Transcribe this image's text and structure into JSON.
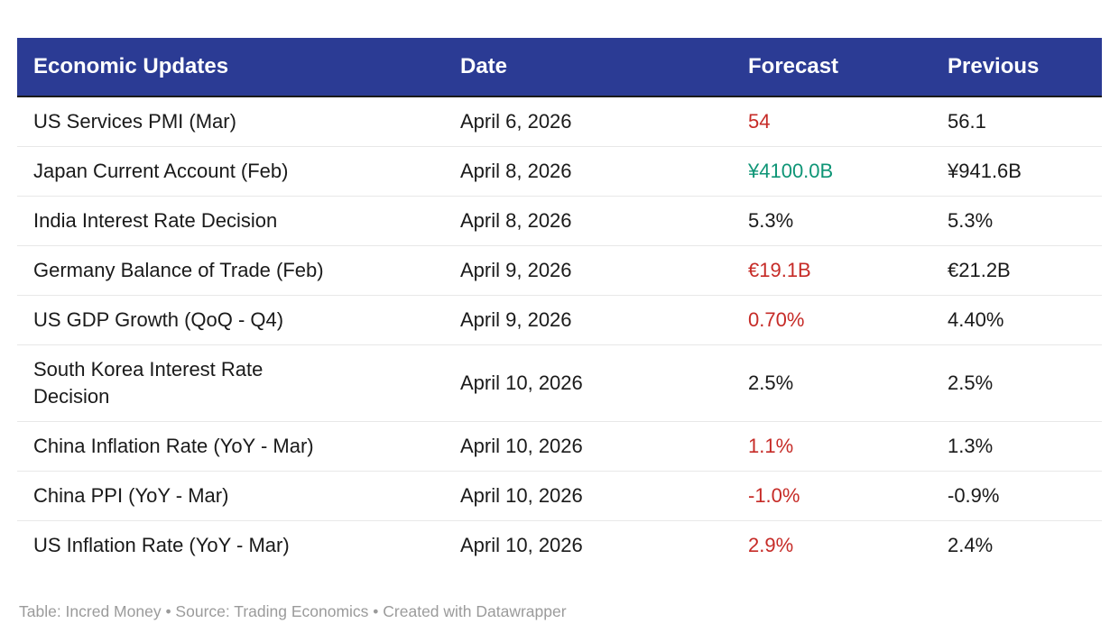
{
  "chart_data": {
    "type": "table",
    "columns": [
      "Economic Updates",
      "Date",
      "Forecast",
      "Previous"
    ],
    "rows": [
      {
        "indicator": "US Services PMI (Mar)",
        "date": "April 6, 2026",
        "forecast": "54",
        "forecast_color": "red",
        "previous": "56.1"
      },
      {
        "indicator": "Japan Current Account (Feb)",
        "date": "April 8, 2026",
        "forecast": "¥4100.0B",
        "forecast_color": "green",
        "previous": "¥941.6B"
      },
      {
        "indicator": "India Interest Rate Decision",
        "date": "April 8, 2026",
        "forecast": "5.3%",
        "forecast_color": "default",
        "previous": "5.3%"
      },
      {
        "indicator": "Germany Balance of Trade (Feb)",
        "date": "April 9, 2026",
        "forecast": "€19.1B",
        "forecast_color": "red",
        "previous": "€21.2B"
      },
      {
        "indicator": "US GDP Growth (QoQ - Q4)",
        "date": "April 9, 2026",
        "forecast": "0.70%",
        "forecast_color": "red",
        "previous": "4.40%"
      },
      {
        "indicator": "South Korea Interest Rate Decision",
        "date": "April 10, 2026",
        "forecast": "2.5%",
        "forecast_color": "default",
        "previous": "2.5%"
      },
      {
        "indicator": "China Inflation Rate (YoY - Mar)",
        "date": "April 10, 2026",
        "forecast": "1.1%",
        "forecast_color": "red",
        "previous": "1.3%"
      },
      {
        "indicator": "China PPI (YoY - Mar)",
        "date": "April 10, 2026",
        "forecast": "-1.0%",
        "forecast_color": "red",
        "previous": "-0.9%"
      },
      {
        "indicator": "US Inflation Rate (YoY - Mar)",
        "date": "April 10, 2026",
        "forecast": "2.9%",
        "forecast_color": "red",
        "previous": "2.4%"
      }
    ],
    "legend_position": "none",
    "grid": "horizontal-separators"
  },
  "footer": {
    "text": "Table: Incred Money • Source: Trading Economics • Created with Datawrapper"
  },
  "colors": {
    "header_bg": "#2b3b94",
    "header_text": "#ffffff",
    "header_border": "#1a1a1a",
    "body_text": "#1a1a1a",
    "red": "#c62b27",
    "green": "#0e9576",
    "separator": "#e8e8e8",
    "footer_text": "#9b9b9b"
  }
}
